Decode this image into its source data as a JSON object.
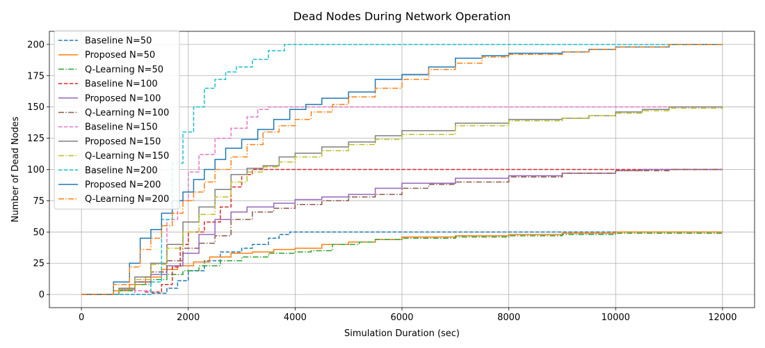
{
  "chart_data": {
    "type": "line",
    "title": "Dead Nodes During Network Operation",
    "xlabel": "Simulation Duration (sec)",
    "ylabel": "Number of Dead Nodes",
    "xlim": [
      -600,
      12600
    ],
    "ylim": [
      -10.5,
      210.5
    ],
    "xticks": [
      0,
      2000,
      4000,
      6000,
      8000,
      10000,
      12000
    ],
    "yticks": [
      0,
      25,
      50,
      75,
      100,
      125,
      150,
      175,
      200
    ],
    "grid": true,
    "legend_position": "upper left",
    "series": [
      {
        "name": "Baseline N=50",
        "color": "#1f77b4",
        "style": "dashed",
        "x": [
          0,
          600,
          1000,
          1300,
          1600,
          1800,
          2000,
          2300,
          2600,
          3000,
          3200,
          3500,
          3700,
          3900,
          12000
        ],
        "y": [
          0,
          0,
          0,
          1,
          5,
          11,
          19,
          27,
          34,
          37,
          40,
          45,
          48,
          50,
          50
        ]
      },
      {
        "name": "Proposed N=50",
        "color": "#ff7f0e",
        "style": "solid",
        "x": [
          0,
          300,
          600,
          900,
          1200,
          1500,
          1800,
          2100,
          2400,
          2800,
          3200,
          3600,
          4000,
          4500,
          5000,
          5500,
          6000,
          7000,
          8000,
          9000,
          10000,
          11000,
          12000
        ],
        "y": [
          0,
          0,
          3,
          8,
          14,
          20,
          23,
          26,
          30,
          33,
          34,
          36,
          37,
          40,
          42,
          44,
          46,
          47,
          48,
          49,
          50,
          50,
          50
        ]
      },
      {
        "name": "Q-Learning N=50",
        "color": "#2ca02c",
        "style": "dashdot",
        "x": [
          0,
          400,
          700,
          1000,
          1300,
          1600,
          1900,
          2200,
          2600,
          3000,
          3500,
          4000,
          4300,
          4700,
          5200,
          5500,
          6000,
          7000,
          8000,
          9000,
          10000,
          11000,
          12000
        ],
        "y": [
          0,
          0,
          3,
          8,
          12,
          16,
          19,
          23,
          27,
          30,
          33,
          34,
          35,
          40,
          42,
          44,
          45,
          46,
          47,
          48,
          49,
          49,
          50
        ]
      },
      {
        "name": "Baseline N=100",
        "color": "#d62728",
        "style": "dashed",
        "x": [
          0,
          900,
          1200,
          1500,
          1700,
          1850,
          2000,
          2300,
          2600,
          2800,
          3000,
          3200,
          12000
        ],
        "y": [
          0,
          0,
          2,
          8,
          22,
          40,
          50,
          58,
          70,
          86,
          96,
          100,
          100
        ]
      },
      {
        "name": "Proposed N=100",
        "color": "#9467bd",
        "style": "solid",
        "x": [
          0,
          400,
          700,
          1000,
          1300,
          1600,
          1900,
          2200,
          2500,
          2800,
          3100,
          3600,
          4000,
          4500,
          5000,
          5500,
          6000,
          7000,
          8000,
          9000,
          10000,
          10500,
          12000
        ],
        "y": [
          0,
          0,
          4,
          10,
          16,
          23,
          33,
          48,
          60,
          66,
          70,
          73,
          76,
          78,
          80,
          85,
          89,
          93,
          95,
          97,
          99,
          100,
          100
        ]
      },
      {
        "name": "Q-Learning N=100",
        "color": "#8c564b",
        "style": "dashdot",
        "x": [
          0,
          400,
          700,
          1000,
          1300,
          1600,
          1900,
          2200,
          2500,
          2800,
          3200,
          3600,
          4000,
          4500,
          5000,
          5500,
          6000,
          6500,
          7000,
          8000,
          9000,
          10000,
          11000,
          12000
        ],
        "y": [
          0,
          0,
          4,
          10,
          18,
          27,
          37,
          41,
          47,
          60,
          66,
          69,
          72,
          75,
          78,
          80,
          85,
          88,
          90,
          94,
          97,
          99,
          100,
          100
        ]
      },
      {
        "name": "Baseline N=150",
        "color": "#e377c2",
        "style": "dashed",
        "x": [
          0,
          800,
          1000,
          1300,
          1600,
          1800,
          2000,
          2200,
          2500,
          2800,
          3100,
          3300,
          3500,
          12000
        ],
        "y": [
          0,
          0,
          3,
          25,
          60,
          75,
          98,
          112,
          125,
          133,
          142,
          148,
          150,
          150
        ]
      },
      {
        "name": "Proposed N=150",
        "color": "#7f7f7f",
        "style": "solid",
        "x": [
          0,
          400,
          700,
          1000,
          1300,
          1600,
          1900,
          2200,
          2500,
          2800,
          3100,
          3400,
          3700,
          4000,
          4500,
          5000,
          5500,
          6000,
          7000,
          8000,
          9000,
          9500,
          10000,
          10500,
          11000,
          12000
        ],
        "y": [
          0,
          0,
          5,
          14,
          25,
          40,
          58,
          70,
          84,
          96,
          101,
          103,
          110,
          113,
          118,
          122,
          127,
          131,
          137,
          140,
          141,
          143,
          146,
          148,
          150,
          150
        ]
      },
      {
        "name": "Q-Learning N=150",
        "color": "#bcbd22",
        "style": "dashdot",
        "x": [
          0,
          400,
          700,
          1000,
          1300,
          1600,
          1900,
          2200,
          2500,
          2800,
          3100,
          3400,
          3700,
          4000,
          4500,
          5000,
          5500,
          6000,
          7000,
          8000,
          9000,
          9500,
          10000,
          10500,
          11000,
          12000
        ],
        "y": [
          0,
          0,
          4,
          12,
          24,
          37,
          50,
          64,
          78,
          90,
          98,
          102,
          106,
          110,
          115,
          120,
          124,
          128,
          135,
          139,
          141,
          143,
          145,
          147,
          149,
          150
        ]
      },
      {
        "name": "Baseline N=200",
        "color": "#17becf",
        "style": "dashed",
        "x": [
          0,
          1100,
          1300,
          1500,
          1700,
          1900,
          2100,
          2300,
          2500,
          2700,
          2900,
          3200,
          3500,
          3800,
          12000
        ],
        "y": [
          0,
          0,
          10,
          60,
          105,
          130,
          150,
          165,
          172,
          178,
          182,
          188,
          195,
          200,
          200
        ]
      },
      {
        "name": "Proposed N=200",
        "color": "#1f77b4",
        "style": "solid",
        "x": [
          0,
          300,
          600,
          900,
          1100,
          1300,
          1500,
          1700,
          1900,
          2100,
          2300,
          2500,
          2700,
          3000,
          3300,
          3600,
          3900,
          4200,
          4500,
          5000,
          5500,
          6000,
          6500,
          7000,
          7500,
          8000,
          9000,
          9500,
          10000,
          11000,
          12000
        ],
        "y": [
          0,
          0,
          10,
          25,
          45,
          52,
          65,
          75,
          82,
          92,
          100,
          108,
          117,
          124,
          132,
          140,
          148,
          152,
          157,
          162,
          172,
          176,
          182,
          189,
          191,
          193,
          194,
          196,
          198,
          200,
          200
        ]
      },
      {
        "name": "Q-Learning N=200",
        "color": "#ff7f0e",
        "style": "dashdot",
        "x": [
          0,
          300,
          600,
          900,
          1100,
          1300,
          1500,
          1700,
          1900,
          2100,
          2300,
          2500,
          2800,
          3100,
          3400,
          3700,
          4000,
          4300,
          4700,
          5000,
          5500,
          6000,
          6500,
          7000,
          7500,
          8000,
          9000,
          9500,
          10000,
          11000,
          12000
        ],
        "y": [
          0,
          0,
          8,
          22,
          36,
          45,
          55,
          65,
          75,
          82,
          90,
          100,
          110,
          120,
          130,
          135,
          140,
          146,
          152,
          158,
          165,
          172,
          180,
          185,
          190,
          192,
          194,
          196,
          198,
          200,
          200
        ]
      }
    ]
  }
}
